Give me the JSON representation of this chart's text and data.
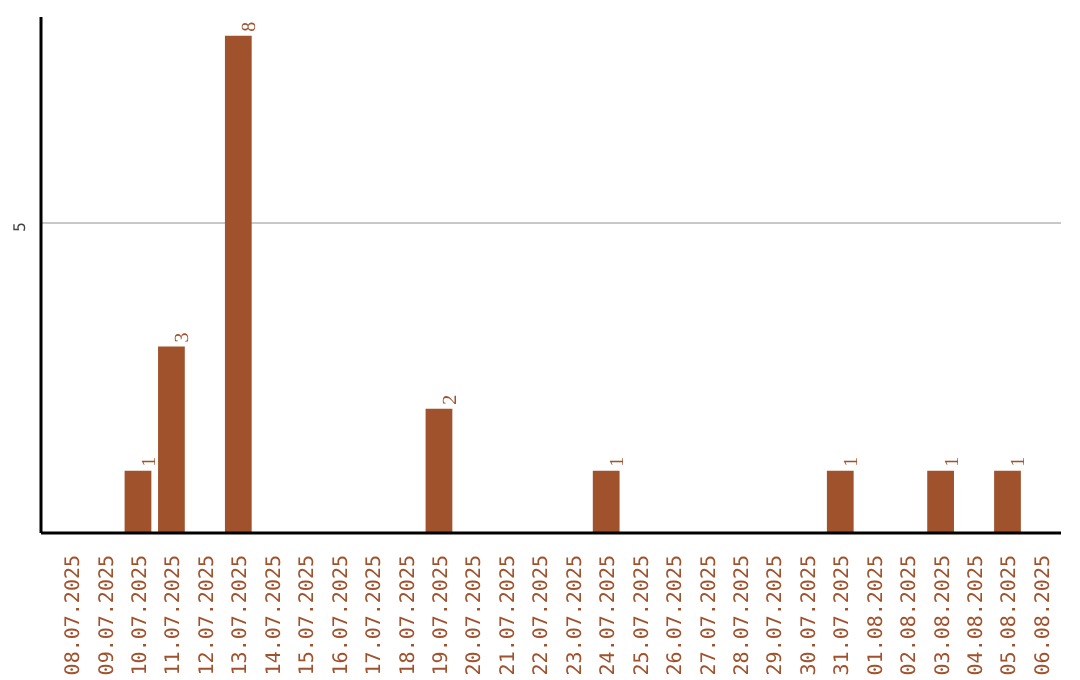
{
  "chart_data": {
    "type": "bar",
    "categories": [
      "08.07.2025",
      "09.07.2025",
      "10.07.2025",
      "11.07.2025",
      "12.07.2025",
      "13.07.2025",
      "14.07.2025",
      "15.07.2025",
      "16.07.2025",
      "17.07.2025",
      "18.07.2025",
      "19.07.2025",
      "20.07.2025",
      "21.07.2025",
      "22.07.2025",
      "23.07.2025",
      "24.07.2025",
      "25.07.2025",
      "26.07.2025",
      "27.07.2025",
      "28.07.2025",
      "29.07.2025",
      "30.07.2025",
      "31.07.2025",
      "01.08.2025",
      "02.08.2025",
      "03.08.2025",
      "04.08.2025",
      "05.08.2025",
      "06.08.2025"
    ],
    "values": [
      0,
      0,
      1,
      3,
      0,
      8,
      0,
      0,
      0,
      0,
      0,
      2,
      0,
      0,
      0,
      0,
      1,
      0,
      0,
      0,
      0,
      0,
      0,
      1,
      0,
      0,
      1,
      0,
      1,
      0
    ],
    "value_labels": [
      null,
      null,
      "1",
      "3",
      null,
      "8",
      null,
      null,
      null,
      null,
      null,
      "2",
      null,
      null,
      null,
      null,
      "1",
      null,
      null,
      null,
      null,
      null,
      null,
      "1",
      null,
      null,
      "1",
      null,
      "1",
      null
    ],
    "color": "#a0522d",
    "ylim": [
      0,
      8.3
    ],
    "yticks": [
      5
    ],
    "grid": "y"
  }
}
